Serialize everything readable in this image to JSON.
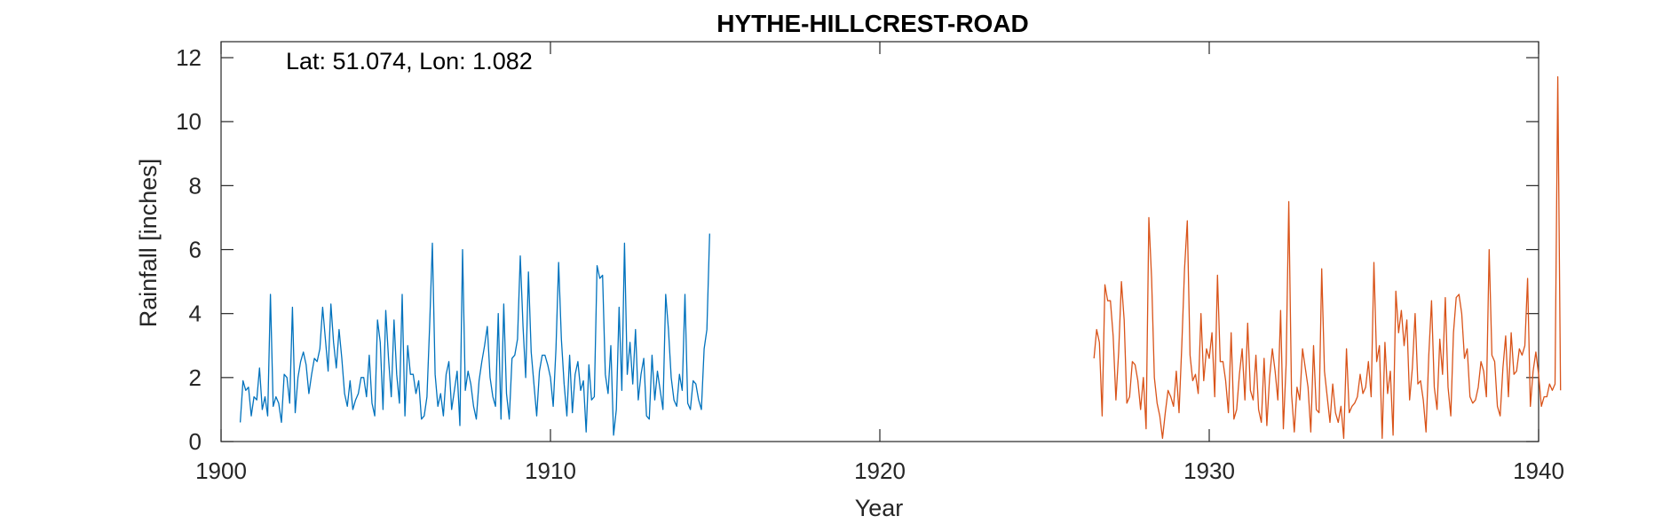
{
  "chart_data": {
    "type": "line",
    "title": "HYTHE-HILLCREST-ROAD",
    "annotation": "Lat: 51.074, Lon: 1.082",
    "xlabel": "Year",
    "ylabel": "Rainfall [inches]",
    "xlim": [
      1900,
      1940
    ],
    "ylim": [
      0,
      12.5
    ],
    "x_ticks": [
      1900,
      1910,
      1920,
      1930,
      1940
    ],
    "y_ticks": [
      0,
      2,
      4,
      6,
      8,
      10,
      12
    ],
    "grid": false,
    "series": [
      {
        "color": "#0072BD",
        "start_year": 1900.583,
        "step_years": 0.08333,
        "values": [
          0.6,
          1.9,
          1.6,
          1.7,
          0.8,
          1.4,
          1.3,
          2.3,
          1.0,
          1.4,
          0.8,
          4.6,
          1.1,
          1.4,
          1.2,
          0.6,
          2.1,
          2.0,
          1.2,
          4.2,
          0.9,
          2.0,
          2.5,
          2.8,
          2.4,
          1.5,
          2.1,
          2.6,
          2.5,
          2.9,
          4.2,
          3.2,
          2.2,
          4.3,
          3.1,
          2.3,
          3.5,
          2.6,
          1.5,
          1.1,
          1.9,
          1.0,
          1.3,
          1.5,
          2.0,
          2.0,
          1.4,
          2.7,
          1.2,
          0.8,
          3.8,
          3.1,
          1.0,
          4.1,
          2.6,
          1.4,
          3.8,
          2.1,
          1.2,
          4.6,
          0.8,
          3.0,
          2.1,
          2.1,
          1.5,
          1.9,
          0.7,
          0.8,
          1.4,
          3.6,
          6.2,
          2.1,
          1.1,
          1.5,
          0.8,
          2.1,
          2.5,
          1.0,
          1.6,
          2.2,
          0.5,
          6.0,
          1.6,
          2.2,
          1.8,
          1.1,
          0.7,
          1.9,
          2.5,
          3.0,
          3.6,
          2.0,
          1.4,
          1.1,
          4.0,
          0.7,
          4.3,
          1.5,
          0.7,
          2.6,
          2.7,
          3.2,
          5.8,
          3.6,
          2.0,
          5.3,
          2.8,
          1.8,
          0.8,
          2.2,
          2.7,
          2.7,
          2.4,
          2.0,
          1.1,
          2.9,
          5.6,
          3.2,
          1.8,
          0.8,
          2.7,
          0.9,
          2.1,
          2.5,
          1.6,
          1.9,
          0.3,
          2.4,
          1.3,
          1.4,
          5.5,
          5.1,
          5.2,
          2.1,
          1.5,
          3.0,
          0.2,
          1.0,
          4.2,
          1.6,
          6.2,
          2.1,
          3.1,
          1.8,
          3.5,
          1.3,
          2.1,
          2.6,
          0.8,
          0.7,
          2.7,
          1.3,
          2.2,
          1.6,
          1.0,
          4.6,
          3.5,
          2.0,
          1.3,
          1.1,
          2.1,
          1.6,
          4.6,
          1.2,
          1.0,
          1.9,
          1.8,
          1.3,
          1.0,
          2.9,
          3.5,
          6.5
        ]
      },
      {
        "color": "#D95319",
        "start_year": 1926.5,
        "step_years": 0.08333,
        "values": [
          2.6,
          3.5,
          3.1,
          0.8,
          4.9,
          4.4,
          4.4,
          3.3,
          1.3,
          2.8,
          5.0,
          3.8,
          1.2,
          1.4,
          2.5,
          2.4,
          1.9,
          1.0,
          2.0,
          0.4,
          7.0,
          5.1,
          2.0,
          1.2,
          0.8,
          0.1,
          0.9,
          1.6,
          1.4,
          1.1,
          2.2,
          0.9,
          3.0,
          5.4,
          6.9,
          2.7,
          1.9,
          2.1,
          1.5,
          4.0,
          1.9,
          2.9,
          2.6,
          3.4,
          1.4,
          5.2,
          2.5,
          2.5,
          1.9,
          0.9,
          3.4,
          0.7,
          1.0,
          2.1,
          2.9,
          1.3,
          3.7,
          1.6,
          1.3,
          2.7,
          1.0,
          0.6,
          2.6,
          0.5,
          2.0,
          2.9,
          2.2,
          1.3,
          4.1,
          0.4,
          2.4,
          7.5,
          1.5,
          0.3,
          1.7,
          1.3,
          2.9,
          2.3,
          1.7,
          0.3,
          3.0,
          1.0,
          0.9,
          5.4,
          2.2,
          1.4,
          0.6,
          1.8,
          0.9,
          0.6,
          1.1,
          0.1,
          2.9,
          0.9,
          1.1,
          1.2,
          1.4,
          2.1,
          1.5,
          1.7,
          2.5,
          1.4,
          5.6,
          2.5,
          3.0,
          0.1,
          3.1,
          1.5,
          2.2,
          0.2,
          4.7,
          3.4,
          4.1,
          3.0,
          3.8,
          1.3,
          2.3,
          4.0,
          1.8,
          1.9,
          1.3,
          0.3,
          2.7,
          4.4,
          1.7,
          1.0,
          3.2,
          2.1,
          4.5,
          1.7,
          0.8,
          3.4,
          4.5,
          4.6,
          4.0,
          2.6,
          2.9,
          1.4,
          1.2,
          1.3,
          1.7,
          2.5,
          2.2,
          1.4,
          6.0,
          2.7,
          2.5,
          1.1,
          0.8,
          2.3,
          3.3,
          1.4,
          3.4,
          2.1,
          2.2,
          2.9,
          2.7,
          3.0,
          5.1,
          1.1,
          2.2,
          2.8,
          2.1,
          1.1,
          1.4,
          1.4,
          1.8,
          1.6,
          1.8,
          11.4,
          1.6
        ]
      }
    ]
  }
}
